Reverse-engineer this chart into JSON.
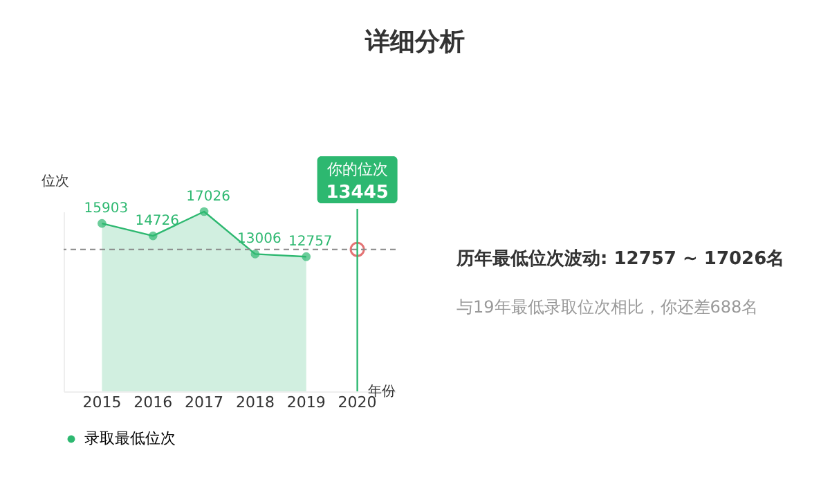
{
  "chart_data": {
    "type": "area",
    "title": "详细分析",
    "xlabel": "年份",
    "ylabel": "位次",
    "categories": [
      "2015",
      "2016",
      "2017",
      "2018",
      "2019",
      "2020"
    ],
    "series": [
      {
        "name": "录取最低位次",
        "type": "area",
        "color": "#2db870",
        "values": [
          15903,
          14726,
          17026,
          13006,
          12757,
          null
        ]
      },
      {
        "type": "scatter",
        "color": "#d9383a",
        "values": [
          null,
          null,
          null,
          null,
          null,
          13445
        ]
      }
    ],
    "ref_lines": [
      {
        "axis": "y",
        "value": 13445,
        "color": "#888888",
        "line_style": "dashed"
      },
      {
        "axis": "x",
        "value": "2020",
        "label": "你的位次",
        "color": "#2db870"
      }
    ],
    "annotations": [
      "历年最低位次波动: 12757 ~ 17026名",
      "与19年最低录取位次相比，你还差688名"
    ],
    "data_labels": true,
    "marker": "circle",
    "grid": false,
    "legend": "bottom",
    "tick_labels": "x"
  }
}
